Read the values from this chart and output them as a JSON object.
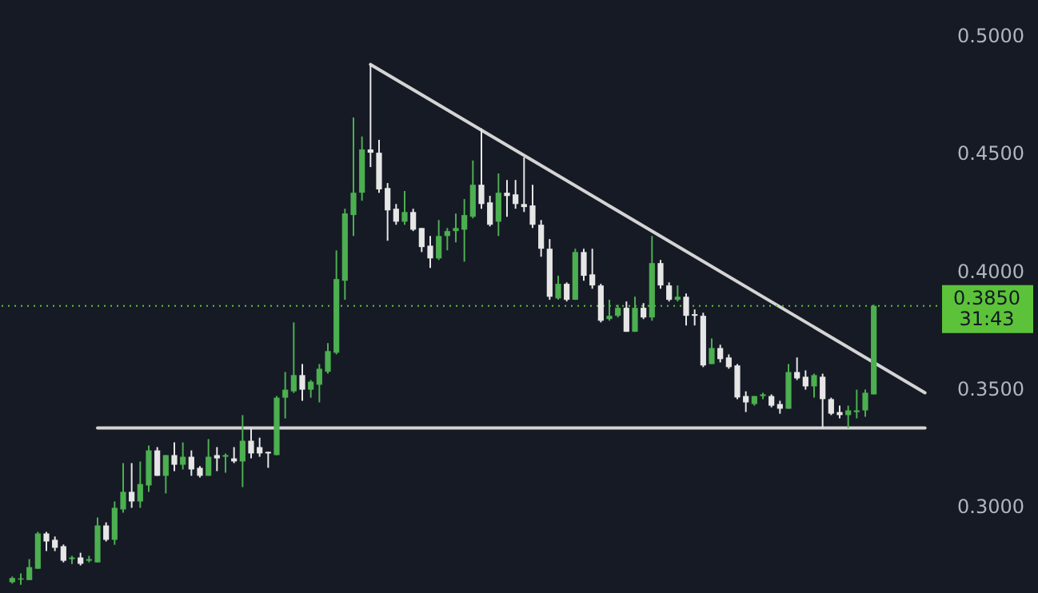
{
  "chart_data": {
    "type": "candlestick",
    "categories": [
      null,
      null,
      null,
      null,
      null,
      null,
      null,
      null,
      null,
      null,
      null,
      null,
      null,
      null,
      null,
      null,
      null,
      null,
      null,
      null,
      null,
      null,
      null,
      null,
      null,
      null,
      null,
      null,
      null,
      null,
      null,
      null,
      null,
      null,
      null,
      null,
      null,
      null,
      null,
      null,
      null,
      null,
      null,
      null,
      null,
      null,
      null,
      null,
      null,
      null,
      null,
      null,
      null,
      null,
      null,
      null,
      null,
      null,
      null,
      null,
      null,
      null,
      null,
      null,
      null,
      null,
      null,
      null,
      null,
      null,
      null,
      null,
      null,
      null,
      null,
      null,
      null,
      null,
      null,
      null,
      null,
      null,
      null,
      null,
      null,
      null,
      null,
      null,
      null,
      null,
      null,
      null,
      null,
      null,
      null,
      null,
      null,
      null,
      null,
      null,
      null,
      null,
      null,
      null,
      null,
      null,
      null,
      null
    ],
    "ohlc": [
      [
        0.2676,
        0.27,
        0.267,
        0.2694
      ],
      [
        0.2687,
        0.2713,
        0.2665,
        0.2692
      ],
      [
        0.2685,
        0.2774,
        0.2685,
        0.274
      ],
      [
        0.2733,
        0.289,
        0.2733,
        0.2883
      ],
      [
        0.2883,
        0.289,
        0.2808,
        0.2849
      ],
      [
        0.2856,
        0.287,
        0.2808,
        0.2822
      ],
      [
        0.2829,
        0.2836,
        0.276,
        0.2767
      ],
      [
        0.2774,
        0.2788,
        0.2753,
        0.2781
      ],
      [
        0.2781,
        0.2801,
        0.2747,
        0.2754
      ],
      [
        0.2767,
        0.2788,
        0.276,
        0.2774
      ],
      [
        0.276,
        0.2951,
        0.276,
        0.2917
      ],
      [
        0.2917,
        0.293,
        0.2849,
        0.2856
      ],
      [
        0.2856,
        0.3019,
        0.2835,
        0.2992
      ],
      [
        0.2985,
        0.3182,
        0.2971,
        0.306
      ],
      [
        0.306,
        0.3182,
        0.2992,
        0.3019
      ],
      [
        0.3019,
        0.3189,
        0.2992,
        0.3093
      ],
      [
        0.3087,
        0.3257,
        0.306,
        0.3236
      ],
      [
        0.3236,
        0.325,
        0.3128,
        0.3128
      ],
      [
        0.3128,
        0.3216,
        0.3053,
        0.3216
      ],
      [
        0.3216,
        0.327,
        0.3148,
        0.3175
      ],
      [
        0.3175,
        0.327,
        0.3155,
        0.3209
      ],
      [
        0.3209,
        0.3236,
        0.3128,
        0.3155
      ],
      [
        0.3162,
        0.3169,
        0.3121,
        0.3128
      ],
      [
        0.3128,
        0.3284,
        0.3128,
        0.3209
      ],
      [
        0.3216,
        0.325,
        0.3148,
        0.3202
      ],
      [
        0.3209,
        0.3223,
        0.3141,
        0.3216
      ],
      [
        0.3202,
        0.325,
        0.3182,
        0.3189
      ],
      [
        0.3189,
        0.3386,
        0.308,
        0.3277
      ],
      [
        0.3277,
        0.3331,
        0.3202,
        0.3223
      ],
      [
        0.325,
        0.329,
        0.3209,
        0.3223
      ],
      [
        0.323,
        0.323,
        0.3162,
        0.3223
      ],
      [
        0.3216,
        0.3467,
        0.3216,
        0.346
      ],
      [
        0.346,
        0.3569,
        0.3372,
        0.3494
      ],
      [
        0.3487,
        0.378,
        0.348,
        0.3556
      ],
      [
        0.3556,
        0.3603,
        0.3447,
        0.3494
      ],
      [
        0.3494,
        0.3535,
        0.346,
        0.3528
      ],
      [
        0.3515,
        0.3603,
        0.344,
        0.3583
      ],
      [
        0.357,
        0.3692,
        0.3562,
        0.3658
      ],
      [
        0.3651,
        0.4086,
        0.3644,
        0.3964
      ],
      [
        0.3957,
        0.4263,
        0.3876,
        0.4243
      ],
      [
        0.4236,
        0.4651,
        0.4147,
        0.4331
      ],
      [
        0.4331,
        0.457,
        0.4297,
        0.4515
      ],
      [
        0.4515,
        0.4876,
        0.444,
        0.4501
      ],
      [
        0.4501,
        0.4556,
        0.4331,
        0.4345
      ],
      [
        0.4351,
        0.4372,
        0.4127,
        0.4256
      ],
      [
        0.4263,
        0.4283,
        0.4195,
        0.4208
      ],
      [
        0.4208,
        0.4338,
        0.4195,
        0.4249
      ],
      [
        0.4249,
        0.4263,
        0.4168,
        0.4174
      ],
      [
        0.4181,
        0.4181,
        0.4079,
        0.41
      ],
      [
        0.4106,
        0.4147,
        0.4011,
        0.4052
      ],
      [
        0.4052,
        0.4215,
        0.4045,
        0.4147
      ],
      [
        0.4147,
        0.4181,
        0.4086,
        0.4168
      ],
      [
        0.4168,
        0.4242,
        0.412,
        0.4181
      ],
      [
        0.4174,
        0.4304,
        0.4038,
        0.4236
      ],
      [
        0.4229,
        0.4468,
        0.4222,
        0.4365
      ],
      [
        0.4365,
        0.4604,
        0.4263,
        0.4283
      ],
      [
        0.429,
        0.4318,
        0.4188,
        0.4195
      ],
      [
        0.4208,
        0.4413,
        0.4147,
        0.4331
      ],
      [
        0.4331,
        0.4385,
        0.4229,
        0.4317
      ],
      [
        0.4324,
        0.4385,
        0.4263,
        0.4283
      ],
      [
        0.4283,
        0.4481,
        0.4249,
        0.427
      ],
      [
        0.4277,
        0.4365,
        0.4181,
        0.4195
      ],
      [
        0.4195,
        0.4215,
        0.4059,
        0.4093
      ],
      [
        0.4093,
        0.4134,
        0.3876,
        0.3889
      ],
      [
        0.3882,
        0.3978,
        0.3876,
        0.3944
      ],
      [
        0.3944,
        0.395,
        0.3869,
        0.3876
      ],
      [
        0.3876,
        0.4093,
        0.3876,
        0.4079
      ],
      [
        0.4079,
        0.4093,
        0.3957,
        0.3978
      ],
      [
        0.3984,
        0.4093,
        0.3923,
        0.3937
      ],
      [
        0.3937,
        0.3944,
        0.378,
        0.3787
      ],
      [
        0.3794,
        0.3876,
        0.3787,
        0.3808
      ],
      [
        0.3808,
        0.3855,
        0.3801,
        0.3842
      ],
      [
        0.3842,
        0.3869,
        0.374,
        0.374
      ],
      [
        0.374,
        0.3889,
        0.374,
        0.3842
      ],
      [
        0.3842,
        0.3862,
        0.3794,
        0.3801
      ],
      [
        0.3801,
        0.4147,
        0.3787,
        0.4032
      ],
      [
        0.4032,
        0.4045,
        0.3923,
        0.3937
      ],
      [
        0.3937,
        0.395,
        0.3869,
        0.3876
      ],
      [
        0.3876,
        0.3937,
        0.3869,
        0.3889
      ],
      [
        0.3889,
        0.3903,
        0.3767,
        0.3808
      ],
      [
        0.3815,
        0.3835,
        0.3767,
        0.3808
      ],
      [
        0.3808,
        0.3821,
        0.359,
        0.3597
      ],
      [
        0.3603,
        0.3712,
        0.3603,
        0.3671
      ],
      [
        0.3671,
        0.3685,
        0.361,
        0.3624
      ],
      [
        0.3631,
        0.3644,
        0.3583,
        0.359
      ],
      [
        0.3597,
        0.3603,
        0.3454,
        0.3461
      ],
      [
        0.3467,
        0.3487,
        0.3399,
        0.344
      ],
      [
        0.3433,
        0.3467,
        0.3426,
        0.3467
      ],
      [
        0.3467,
        0.3481,
        0.3454,
        0.3474
      ],
      [
        0.3467,
        0.3474,
        0.3419,
        0.3426
      ],
      [
        0.3433,
        0.3447,
        0.3392,
        0.3413
      ],
      [
        0.3413,
        0.3603,
        0.3413,
        0.3569
      ],
      [
        0.3569,
        0.3631,
        0.3535,
        0.3542
      ],
      [
        0.3549,
        0.3576,
        0.3494,
        0.3508
      ],
      [
        0.3508,
        0.3562,
        0.346,
        0.3556
      ],
      [
        0.3549,
        0.3562,
        0.3331,
        0.3454
      ],
      [
        0.3454,
        0.346,
        0.3386,
        0.3392
      ],
      [
        0.3399,
        0.3426,
        0.3372,
        0.3386
      ],
      [
        0.3386,
        0.3426,
        0.3331,
        0.3406
      ],
      [
        0.3399,
        0.3494,
        0.3372,
        0.3406
      ],
      [
        0.3406,
        0.3494,
        0.3379,
        0.3481
      ],
      [
        0.3474,
        0.3855,
        0.3474,
        0.385
      ],
      null,
      null,
      null,
      null,
      null,
      null
    ],
    "colors": [
      "#4caf50",
      "#4caf50",
      "#4caf50",
      "#4caf50",
      "#e6e6e6",
      "#e6e6e6",
      "#e6e6e6",
      "#4caf50",
      "#e6e6e6",
      "#4caf50",
      "#4caf50",
      "#e6e6e6",
      "#4caf50",
      "#4caf50",
      "#e6e6e6",
      "#4caf50",
      "#4caf50",
      "#e6e6e6",
      "#4caf50",
      "#e6e6e6",
      "#4caf50",
      "#e6e6e6",
      "#e6e6e6",
      "#4caf50",
      "#e6e6e6",
      "#4caf50",
      "#e6e6e6",
      "#4caf50",
      "#e6e6e6",
      "#e6e6e6",
      "#e6e6e6",
      "#4caf50",
      "#4caf50",
      "#4caf50",
      "#e6e6e6",
      "#4caf50",
      "#4caf50",
      "#4caf50",
      "#4caf50",
      "#4caf50",
      "#4caf50",
      "#4caf50",
      "#e6e6e6",
      "#e6e6e6",
      "#e6e6e6",
      "#e6e6e6",
      "#4caf50",
      "#e6e6e6",
      "#e6e6e6",
      "#e6e6e6",
      "#4caf50",
      "#4caf50",
      "#4caf50",
      "#4caf50",
      "#4caf50",
      "#e6e6e6",
      "#e6e6e6",
      "#4caf50",
      "#e6e6e6",
      "#e6e6e6",
      "#e6e6e6",
      "#e6e6e6",
      "#e6e6e6",
      "#e6e6e6",
      "#4caf50",
      "#e6e6e6",
      "#4caf50",
      "#e6e6e6",
      "#e6e6e6",
      "#e6e6e6",
      "#4caf50",
      "#4caf50",
      "#e6e6e6",
      "#4caf50",
      "#e6e6e6",
      "#4caf50",
      "#e6e6e6",
      "#e6e6e6",
      "#4caf50",
      "#e6e6e6",
      "#e6e6e6",
      "#e6e6e6",
      "#4caf50",
      "#e6e6e6",
      "#e6e6e6",
      "#e6e6e6",
      "#e6e6e6",
      "#4caf50",
      "#4caf50",
      "#e6e6e6",
      "#e6e6e6",
      "#4caf50",
      "#e6e6e6",
      "#e6e6e6",
      "#4caf50",
      "#e6e6e6",
      "#e6e6e6",
      "#e6e6e6",
      "#4caf50",
      "#4caf50",
      "#4caf50",
      "#4caf50",
      null,
      null,
      null,
      null,
      null,
      null
    ],
    "series": [
      {
        "type": "line",
        "color": "#d4d4d4",
        "values": [
          null,
          null,
          null,
          null,
          null,
          null,
          null,
          null,
          null,
          null,
          0.3331,
          null,
          null,
          null,
          null,
          null,
          null,
          null,
          null,
          null,
          null,
          null,
          null,
          null,
          null,
          null,
          null,
          null,
          null,
          null,
          null,
          null,
          null,
          null,
          null,
          null,
          null,
          null,
          null,
          null,
          null,
          null,
          null,
          null,
          null,
          null,
          null,
          null,
          null,
          null,
          null,
          null,
          null,
          null,
          null,
          null,
          null,
          null,
          null,
          null,
          null,
          null,
          null,
          null,
          null,
          null,
          null,
          null,
          null,
          null,
          null,
          null,
          null,
          null,
          null,
          null,
          null,
          null,
          null,
          null,
          null,
          null,
          null,
          null,
          null,
          null,
          null,
          null,
          null,
          null,
          null,
          null,
          null,
          null,
          null,
          null,
          null,
          null,
          null,
          null,
          null,
          null,
          null,
          null,
          null,
          null,
          null,
          0.3331
        ]
      },
      {
        "type": "line",
        "color": "#d4d4d4",
        "values": [
          null,
          null,
          null,
          null,
          null,
          null,
          null,
          null,
          null,
          null,
          null,
          null,
          null,
          null,
          null,
          null,
          null,
          null,
          null,
          null,
          null,
          null,
          null,
          null,
          null,
          null,
          null,
          null,
          null,
          null,
          null,
          null,
          null,
          null,
          null,
          null,
          null,
          null,
          null,
          null,
          null,
          null,
          0.4876,
          null,
          null,
          null,
          null,
          null,
          null,
          null,
          null,
          null,
          null,
          null,
          null,
          null,
          null,
          null,
          null,
          null,
          null,
          null,
          null,
          null,
          null,
          null,
          null,
          null,
          null,
          null,
          null,
          null,
          null,
          null,
          null,
          null,
          null,
          null,
          null,
          null,
          null,
          null,
          null,
          null,
          null,
          null,
          null,
          null,
          null,
          null,
          null,
          null,
          null,
          null,
          null,
          null,
          null,
          null,
          null,
          null,
          null,
          null,
          null,
          null,
          null,
          null,
          null,
          0.3481
        ]
      }
    ],
    "ylim": [
      0.263,
      0.515
    ],
    "yticks": [
      {
        "value": 0.3,
        "label": "0.3000"
      },
      {
        "value": 0.35,
        "label": "0.3500"
      },
      {
        "value": 0.4,
        "label": "0.4000"
      },
      {
        "value": 0.45,
        "label": "0.4500"
      },
      {
        "value": 0.5,
        "label": "0.5000"
      }
    ],
    "ref_lines": [
      {
        "axis": "y",
        "value": 0.385,
        "label": "0.3850",
        "color": "#5cc23a",
        "line_style": "dotted"
      }
    ],
    "annotations": [
      "31:43"
    ],
    "tick_labels": "y"
  }
}
